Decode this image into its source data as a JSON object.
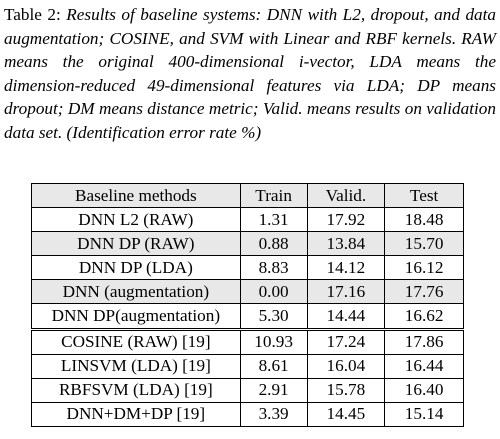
{
  "caption": {
    "label": "Table 2:",
    "text": "Results of baseline systems: DNN with L2, dropout, and data augmentation; COSINE, and SVM with Linear and RBF kernels.  RAW means the original 400-dimensional i-vector, LDA means the dimension-reduced 49-dimensional features via LDA; DP means dropout; DM means distance metric; Valid. means results on validation data set. (Identification error rate %)"
  },
  "table": {
    "headers": [
      "Baseline methods",
      "Train",
      "Valid.",
      "Test"
    ],
    "groups": [
      [
        {
          "method": "DNN L2 (RAW)",
          "train": "1.31",
          "valid": "17.92",
          "test": "18.48",
          "test_bold": false
        },
        {
          "method": "DNN DP (RAW)",
          "train": "0.88",
          "valid": "13.84",
          "test": "15.70",
          "test_bold": true
        },
        {
          "method": "DNN DP (LDA)",
          "train": "8.83",
          "valid": "14.12",
          "test": "16.12",
          "test_bold": false
        },
        {
          "method": "DNN (augmentation)",
          "train": "0.00",
          "valid": "17.16",
          "test": "17.76",
          "test_bold": false
        },
        {
          "method": "DNN DP(augmentation)",
          "train": "5.30",
          "valid": "14.44",
          "test": "16.62",
          "test_bold": false
        }
      ],
      [
        {
          "method": "COSINE (RAW) [19]",
          "train": "10.93",
          "valid": "17.24",
          "test": "17.86",
          "test_bold": false
        },
        {
          "method": "LINSVM (LDA) [19]",
          "train": "8.61",
          "valid": "16.04",
          "test": "16.44",
          "test_bold": false
        },
        {
          "method": "RBFSVM (LDA) [19]",
          "train": "2.91",
          "valid": "15.78",
          "test": "16.40",
          "test_bold": false
        },
        {
          "method": "DNN+DM+DP [19]",
          "train": "3.39",
          "valid": "14.45",
          "test": "15.14",
          "test_bold": true
        }
      ]
    ]
  }
}
